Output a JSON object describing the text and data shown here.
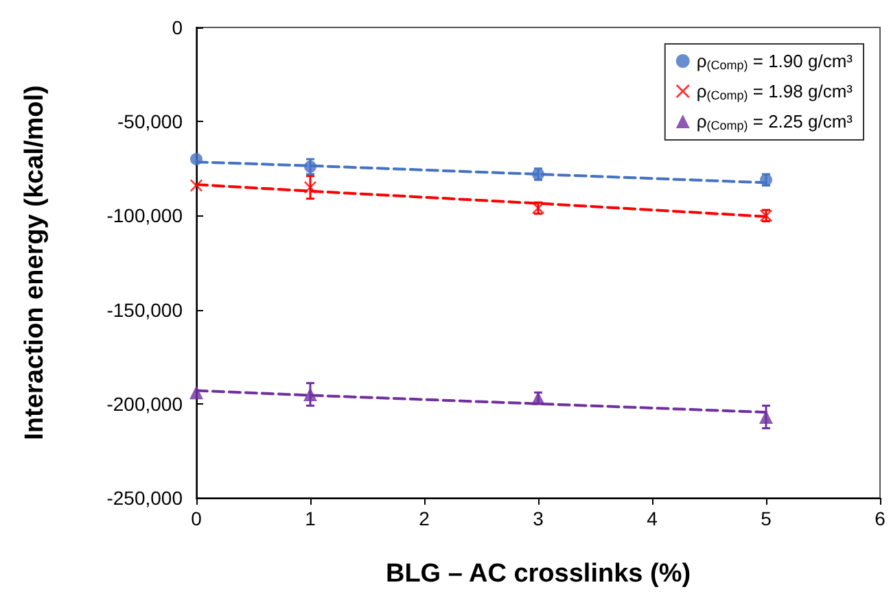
{
  "chart_data": {
    "type": "scatter",
    "xlabel": "BLG – AC crosslinks (%)",
    "ylabel": "Interaction energy (kcal/mol)",
    "x": [
      0,
      1,
      3,
      5
    ],
    "series": [
      {
        "name": "ρ$_{(Comp)}$ = 1.90 g/cm³",
        "color": "#4472c4",
        "marker": "circle",
        "values": [
          -70000,
          -74000,
          -78000,
          -81000
        ],
        "errors": [
          null,
          4000,
          3000,
          3000
        ]
      },
      {
        "name": "ρ$_{(Comp)}$ = 1.98 g/cm³",
        "color": "#ff0000",
        "marker": "cross",
        "values": [
          -84000,
          -85000,
          -96000,
          -100000
        ],
        "errors": [
          null,
          6000,
          3000,
          3000
        ]
      },
      {
        "name": "ρ$_{(Comp)}$ = 2.25 g/cm³",
        "color": "#7030a0",
        "marker": "triangle",
        "values": [
          -194000,
          -195000,
          -197000,
          -207000
        ],
        "errors": [
          null,
          6000,
          3000,
          6000
        ]
      },
      {
        "type": "line",
        "color": "#4472c4",
        "line_style": "dashed",
        "marker": "none",
        "values": [
          -71500,
          -73500,
          -78000,
          -82500
        ]
      },
      {
        "type": "line",
        "color": "#ff0000",
        "line_style": "dashed",
        "marker": "none",
        "values": [
          -83500,
          -87000,
          -93500,
          -100500
        ]
      },
      {
        "type": "line",
        "color": "#7030a0",
        "line_style": "dashed",
        "marker": "none",
        "values": [
          -193000,
          -195500,
          -200000,
          -204500
        ]
      }
    ],
    "xlim": [
      0,
      6
    ],
    "xticks": [
      0,
      1,
      2,
      3,
      4,
      5,
      6
    ],
    "ylim": [
      -250000,
      0
    ],
    "yticks": [
      {
        "value": -250000,
        "label": "-250,000"
      },
      {
        "value": -200000,
        "label": "-200,000"
      },
      {
        "value": -150000,
        "label": "-150,000"
      },
      {
        "value": -100000,
        "label": "-100,000"
      },
      {
        "value": -50000,
        "label": "-50,000"
      },
      0
    ],
    "grid": false,
    "legend": "top right"
  }
}
